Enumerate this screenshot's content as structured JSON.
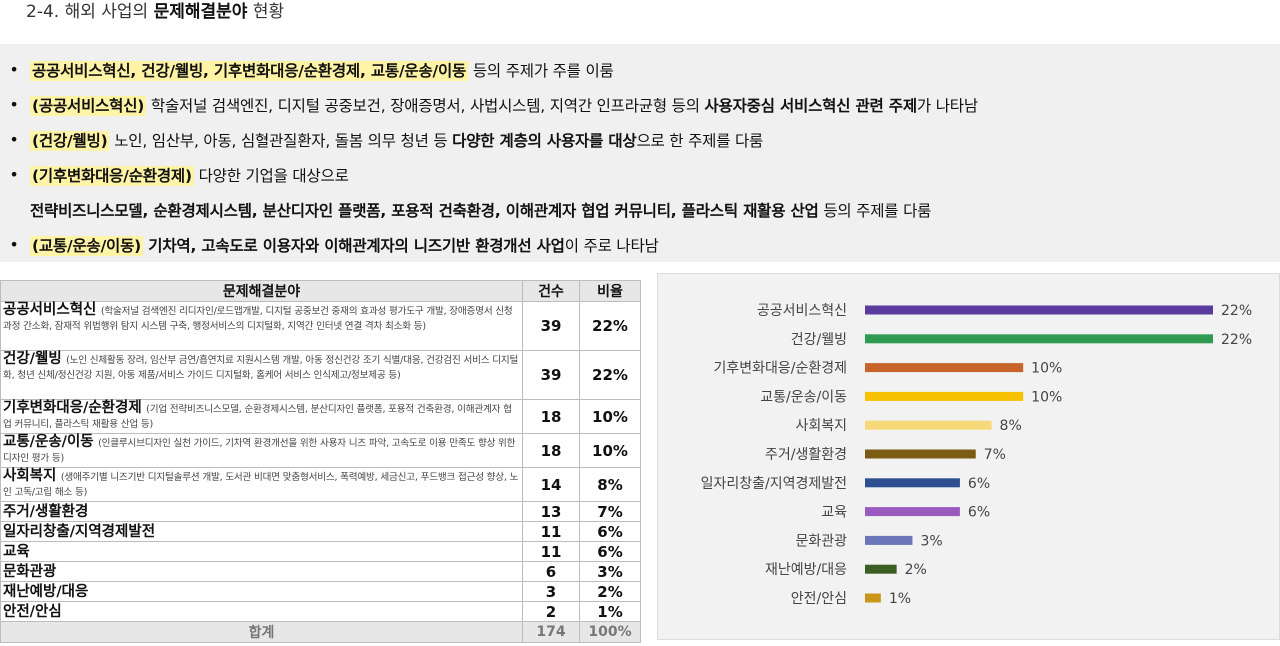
{
  "heading": {
    "prefix": "2-4. 해외 사업의 ",
    "bold": "문제해결분야",
    "suffix": " 현황"
  },
  "summary": {
    "bullet": "•",
    "lines": [
      {
        "b1": "공공서비스혁신, 건강/웰빙, 기후변화대응/순환경제, 교통/운송/이동",
        "t1": " 등의 주제가 주를 이룸"
      },
      {
        "h": "(공공서비스혁신)",
        "t1": " 학술저널 검색엔진, 디지털 공중보건, 장애증명서, 사법시스템, 지역간 인프라균형 등의 ",
        "b1": "사용자중심 서비스혁신 관련 주제",
        "t2": "가 나타남"
      },
      {
        "h": "(건강/웰빙)",
        "t1": " 노인, 임산부, 아동, 심혈관질환자, 돌봄 의무 청년 등 ",
        "b1": "다양한 계층의 사용자를 대상",
        "t2": "으로 한 주제를 다룸"
      },
      {
        "h": "(기후변화대응/순환경제)",
        "t1": " 다양한 기업을 대상으로"
      },
      {
        "b1": "전략비즈니스모델, 순환경제시스템, 분산디자인 플랫폼, 포용적 건축환경, 이해관계자 협업 커뮤니티, 플라스틱 재활용 산업",
        "t1": " 등의 주제를 다룸"
      },
      {
        "h": "(교통/운송/이동)",
        "b1": " 기차역, 고속도로 이용자와 이해관계자의 니즈기반 환경개선 사업",
        "t1": "이 주로 나타남"
      }
    ]
  },
  "table": {
    "headers": {
      "field": "문제해결분야",
      "count": "건수",
      "ratio": "비율"
    },
    "rows": [
      {
        "name": "공공서비스혁신",
        "desc": "(학술저널 검색엔진 리디자인/로드맵개발, 디지털 공중보건 중재의 효과성 평가도구 개발, 장애증명서 신청과정 간소화, 잠재적 위법행위 탐지 시스템 구축, 행정서비스의 디지털화, 지역간 인터넷 연결 격차 최소화 등)",
        "count": "39",
        "ratio": "22%"
      },
      {
        "name": "건강/웰빙",
        "desc": "(노인 신체활동 장려, 임산부 금연/흡연치료 지원시스템 개발, 아동 정신건강 조기 식별/대응, 건강검진 서비스 디지털화, 청년 신체/정신건강 지원, 아동 제품/서비스 가이드 디지털화, 홈케어 서비스 인식제고/정보제공 등)",
        "count": "39",
        "ratio": "22%"
      },
      {
        "name": "기후변화대응/순환경제",
        "desc": "(기업 전략비즈니스모델, 순환경제시스템, 분산디자인 플랫폼, 포용적 건축환경, 이해관계자 협업 커뮤니티, 플라스틱 재활용 산업 등)",
        "count": "18",
        "ratio": "10%"
      },
      {
        "name": "교통/운송/이동",
        "desc": "(인클루시브디자인 실천 가이드, 기차역 환경개선을 위한 사용자 니즈 파악, 고속도로 이용 만족도 향상 위한 디자인 평가 등)",
        "count": "18",
        "ratio": "10%"
      },
      {
        "name": "사회복지",
        "desc": "(생애주기별 니즈기반 디지털솔루션 개발, 도서관 비대면 맞춤형서비스, 폭력예방, 세금신고, 푸드뱅크 접근성 향상, 노인 고독/고립 해소 등)",
        "count": "14",
        "ratio": "8%"
      },
      {
        "name": "주거/생활환경",
        "desc": "",
        "count": "13",
        "ratio": "7%"
      },
      {
        "name": "일자리창출/지역경제발전",
        "desc": "",
        "count": "11",
        "ratio": "6%"
      },
      {
        "name": "교육",
        "desc": "",
        "count": "11",
        "ratio": "6%"
      },
      {
        "name": "문화관광",
        "desc": "",
        "count": "6",
        "ratio": "3%"
      },
      {
        "name": "재난예방/대응",
        "desc": "",
        "count": "3",
        "ratio": "2%"
      },
      {
        "name": "안전/안심",
        "desc": "",
        "count": "2",
        "ratio": "1%"
      }
    ],
    "total": {
      "label": "합계",
      "count": "174",
      "ratio": "100%"
    }
  },
  "chart_data": {
    "type": "bar",
    "orientation": "horizontal",
    "categories": [
      "공공서비스혁신",
      "건강/웰빙",
      "기후변화대응/순환경제",
      "교통/운송/이동",
      "사회복지",
      "주거/생활환경",
      "일자리창출/지역경제발전",
      "교육",
      "문화관광",
      "재난예방/대응",
      "안전/안심"
    ],
    "values": [
      22,
      22,
      10,
      10,
      8,
      7,
      6,
      6,
      3,
      2,
      1
    ],
    "labels": [
      "22%",
      "22%",
      "10%",
      "10%",
      "8%",
      "7%",
      "6%",
      "6%",
      "3%",
      "2%",
      "1%"
    ],
    "colors": [
      "#5b3a9e",
      "#2e9a52",
      "#c8642a",
      "#f6c200",
      "#f7d97a",
      "#7a5c12",
      "#2d4f8f",
      "#9a5bbf",
      "#6b77b8",
      "#3d5e22",
      "#c9961a"
    ],
    "xlim": [
      0,
      22
    ],
    "grid": false,
    "legend": "none"
  }
}
